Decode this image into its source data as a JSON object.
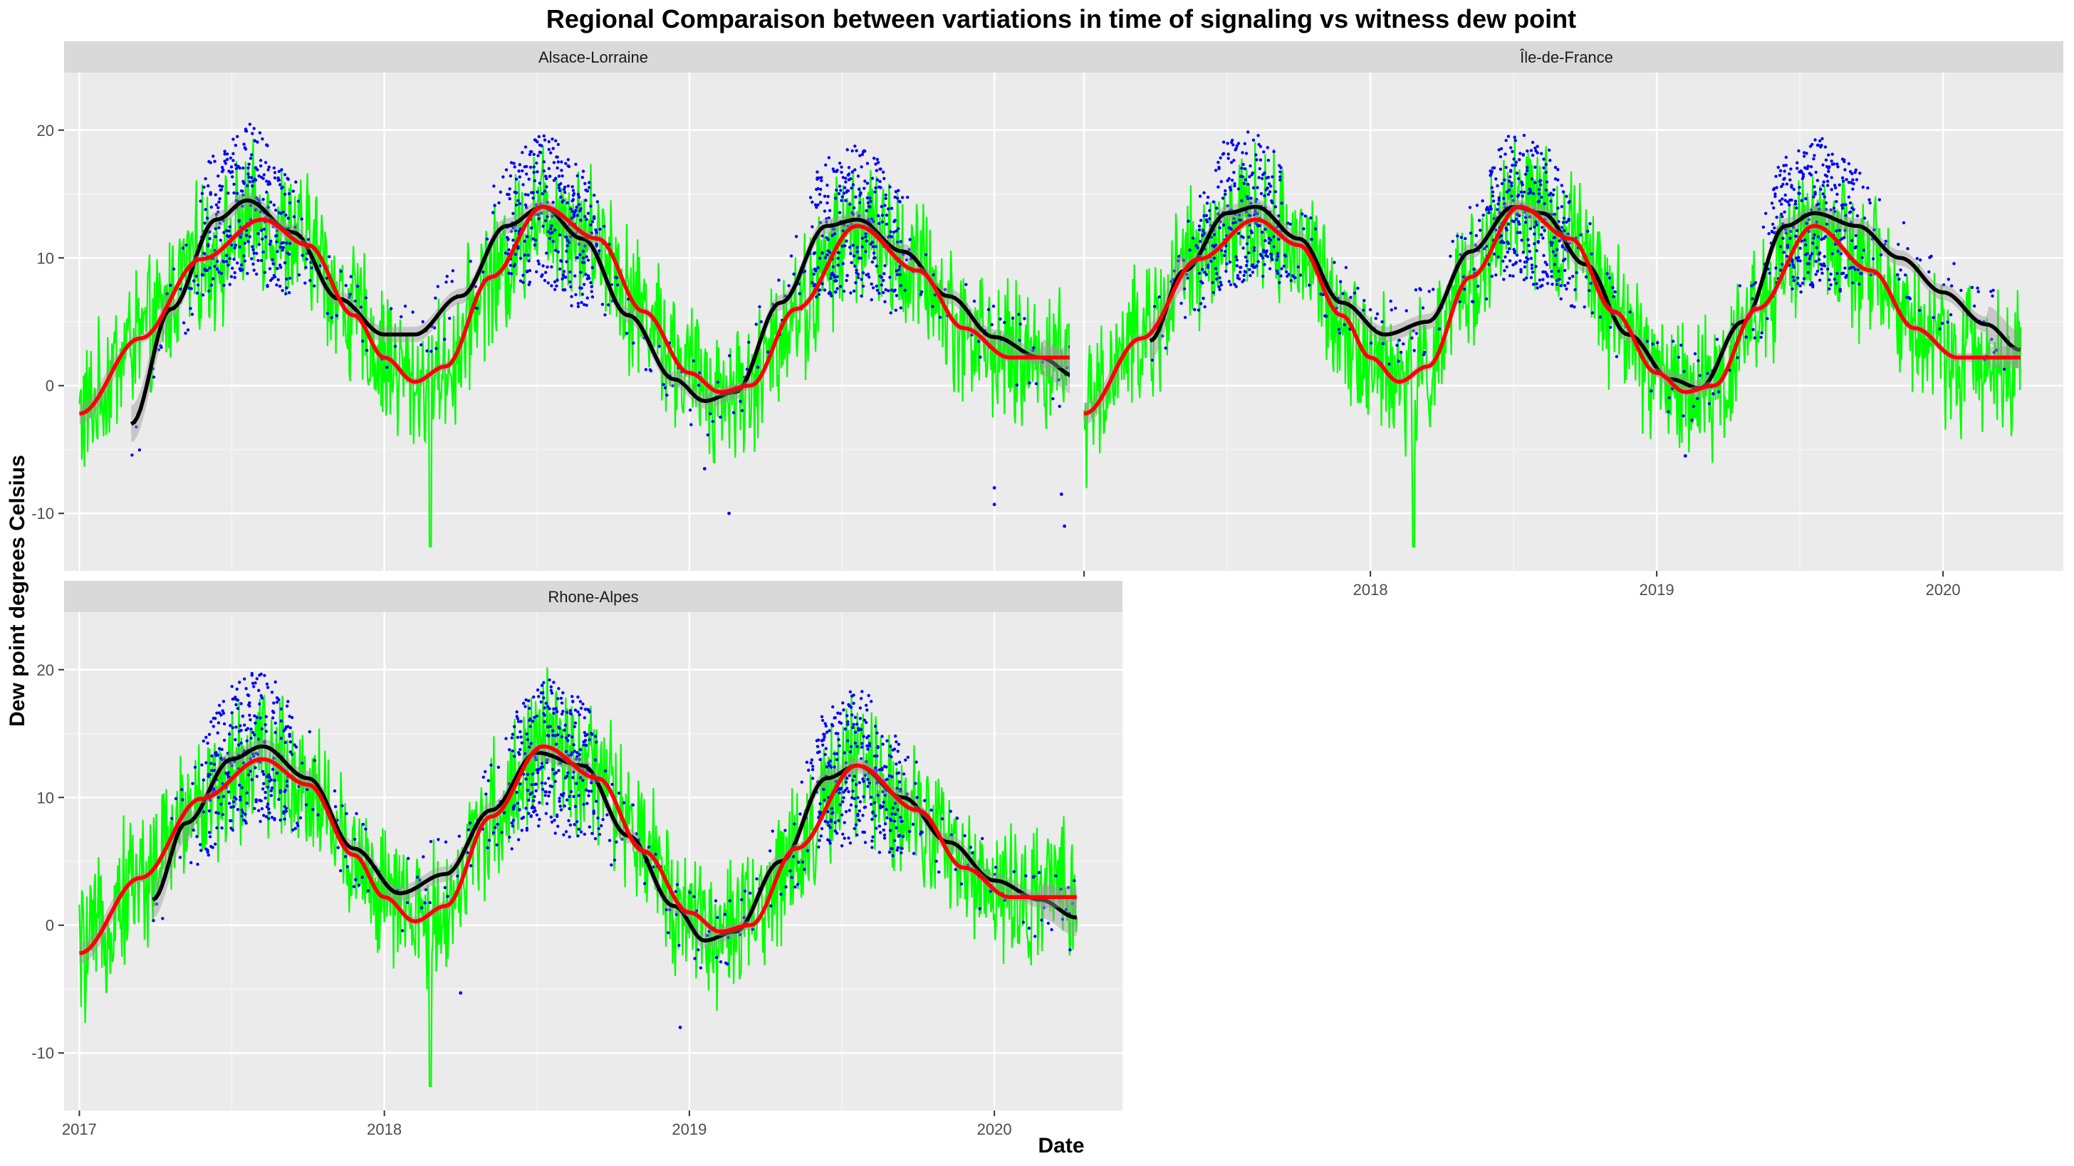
{
  "chart_data": {
    "type": "line",
    "title": "Regional Comparaison between vartiations in time of signaling vs witness dew point",
    "xlabel": "Date",
    "ylabel": "Dew point degrees Celsius",
    "xlim": [
      2016.95,
      2020.42
    ],
    "ylim": [
      -14.5,
      24.5
    ],
    "x_ticks": [
      2017,
      2018,
      2019,
      2020
    ],
    "x_tick_labels": [
      "2017",
      "2018",
      "2019",
      "2020"
    ],
    "y_ticks": [
      -10,
      0,
      10,
      20
    ],
    "y_tick_labels": [
      "-10",
      "0",
      "10",
      "20"
    ],
    "grid": true,
    "legend": "none",
    "colors": {
      "witness_daily": "#00ff00",
      "signaling_points": "#0000ff",
      "signaling_smooth": "#000000",
      "witness_smooth": "#ff0000",
      "confidence_band": "#999999",
      "panel_background": "#ebebeb",
      "strip_background": "#d9d9d9"
    },
    "panels": [
      {
        "region": "Alsace-Lorraine",
        "witness_smooth": {
          "x": [
            2017.0,
            2017.2,
            2017.4,
            2017.6,
            2017.75,
            2017.9,
            2018.0,
            2018.1,
            2018.2,
            2018.35,
            2018.52,
            2018.7,
            2018.85,
            2019.0,
            2019.1,
            2019.2,
            2019.35,
            2019.55,
            2019.75,
            2019.9,
            2020.05,
            2020.27
          ],
          "y": [
            -2.2,
            3.7,
            9.9,
            13.0,
            11.0,
            5.5,
            2.2,
            0.3,
            1.5,
            8.5,
            14.0,
            11.5,
            5.8,
            1.0,
            -0.5,
            0.0,
            6.0,
            12.5,
            9.0,
            4.5,
            2.2,
            2.2
          ]
        },
        "signaling_smooth": {
          "x": [
            2017.17,
            2017.3,
            2017.45,
            2017.55,
            2017.7,
            2017.85,
            2018.0,
            2018.1,
            2018.25,
            2018.4,
            2018.52,
            2018.65,
            2018.8,
            2018.95,
            2019.05,
            2019.15,
            2019.3,
            2019.45,
            2019.55,
            2019.7,
            2019.85,
            2020.0,
            2020.15,
            2020.27
          ],
          "y": [
            -3.0,
            6.0,
            13.0,
            14.5,
            12.0,
            6.8,
            4.0,
            4.0,
            7.0,
            12.5,
            14.0,
            11.5,
            5.5,
            0.5,
            -1.2,
            -0.5,
            6.5,
            12.5,
            13.0,
            10.5,
            7.0,
            3.8,
            2.2,
            0.7
          ]
        },
        "signaling_outliers": {
          "x": [
            2019.05,
            2019.13,
            2020.0,
            2020.0,
            2020.22,
            2020.23
          ],
          "y": [
            -6.5,
            -10.0,
            -8.0,
            -9.3,
            -8.5,
            -11.0
          ]
        },
        "witness_dip": {
          "x": 2018.15,
          "y": -12.6
        }
      },
      {
        "region": "Île-de-France",
        "witness_smooth": {
          "x": [
            2017.0,
            2017.2,
            2017.4,
            2017.6,
            2017.75,
            2017.9,
            2018.0,
            2018.1,
            2018.2,
            2018.35,
            2018.52,
            2018.7,
            2018.85,
            2019.0,
            2019.1,
            2019.2,
            2019.35,
            2019.55,
            2019.75,
            2019.9,
            2020.05,
            2020.27
          ],
          "y": [
            -2.2,
            3.7,
            9.9,
            13.0,
            11.0,
            5.5,
            2.2,
            0.3,
            1.5,
            8.5,
            14.0,
            11.5,
            5.8,
            1.0,
            -0.5,
            0.0,
            6.0,
            12.5,
            9.0,
            4.5,
            2.2,
            2.2
          ]
        },
        "signaling_smooth": {
          "x": [
            2017.23,
            2017.35,
            2017.5,
            2017.6,
            2017.75,
            2017.9,
            2018.05,
            2018.2,
            2018.35,
            2018.5,
            2018.6,
            2018.75,
            2018.9,
            2019.05,
            2019.15,
            2019.3,
            2019.45,
            2019.55,
            2019.7,
            2019.85,
            2020.0,
            2020.15,
            2020.27
          ],
          "y": [
            3.5,
            9.0,
            13.5,
            14.0,
            11.5,
            6.5,
            4.0,
            5.0,
            10.5,
            14.0,
            13.5,
            9.5,
            4.0,
            0.5,
            -0.2,
            5.0,
            12.5,
            13.5,
            12.5,
            10.0,
            7.3,
            4.8,
            2.8
          ]
        },
        "signaling_outliers": {
          "x": [
            2019.1
          ],
          "y": [
            -5.5
          ]
        },
        "witness_dip": {
          "x": 2018.15,
          "y": -12.6
        }
      },
      {
        "region": "Rhone-Alpes",
        "witness_smooth": {
          "x": [
            2017.0,
            2017.2,
            2017.4,
            2017.6,
            2017.75,
            2017.9,
            2018.0,
            2018.1,
            2018.2,
            2018.35,
            2018.52,
            2018.7,
            2018.85,
            2019.0,
            2019.1,
            2019.2,
            2019.35,
            2019.55,
            2019.75,
            2019.9,
            2020.05,
            2020.27
          ],
          "y": [
            -2.2,
            3.7,
            9.9,
            13.0,
            11.0,
            5.5,
            2.2,
            0.3,
            1.5,
            8.5,
            14.0,
            11.5,
            5.8,
            1.0,
            -0.5,
            0.0,
            6.0,
            12.5,
            9.0,
            4.5,
            2.2,
            2.2
          ]
        },
        "signaling_smooth": {
          "x": [
            2017.24,
            2017.35,
            2017.5,
            2017.6,
            2017.75,
            2017.9,
            2018.05,
            2018.2,
            2018.35,
            2018.5,
            2018.65,
            2018.8,
            2018.95,
            2019.05,
            2019.15,
            2019.3,
            2019.45,
            2019.55,
            2019.7,
            2019.85,
            2020.0,
            2020.15,
            2020.27
          ],
          "y": [
            2.0,
            8.0,
            13.0,
            14.0,
            11.5,
            6.0,
            2.5,
            4.0,
            9.0,
            13.5,
            12.5,
            7.0,
            1.5,
            -1.2,
            -0.5,
            5.0,
            11.5,
            12.5,
            10.0,
            6.5,
            3.5,
            2.0,
            0.6
          ]
        },
        "signaling_outliers": {
          "x": [
            2018.97,
            2018.25
          ],
          "y": [
            -8.0,
            -5.3
          ]
        },
        "witness_dip": {
          "x": 2018.15,
          "y": -12.6
        }
      }
    ]
  }
}
